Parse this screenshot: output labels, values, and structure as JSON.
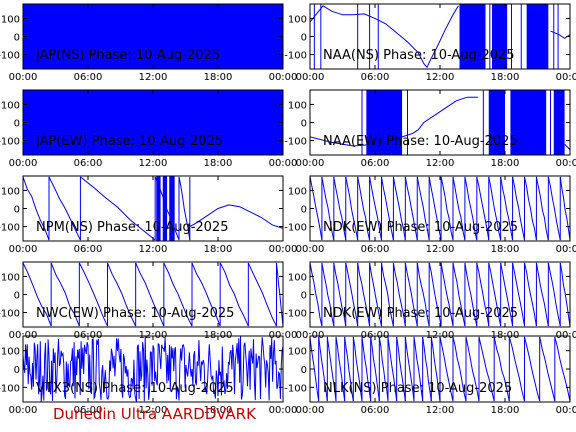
{
  "footer": "Dunedin Ultra AARDDVARK",
  "colors": {
    "trace": "#0000ff",
    "frame": "#000000",
    "footer": "#cc0000"
  },
  "chart_data": [
    {
      "type": "line",
      "title": "JAP(NS) Phase: 10-Aug-2025",
      "xticks": [
        "00:00",
        "06:00",
        "12:00",
        "18:00",
        "00:00"
      ],
      "yticks": [
        100,
        0,
        -100
      ],
      "xlim": [
        0,
        24
      ],
      "ylim": [
        -180,
        180
      ],
      "x_tick_labels_shown": true,
      "pattern": "solid",
      "segments": [
        {
          "start": 0,
          "end": 24
        }
      ]
    },
    {
      "type": "line",
      "title": "NAA(NS) Phase: 10-Aug-2025",
      "xticks": [
        "00:00",
        "06:00",
        "12:00",
        "18:00",
        "00:00"
      ],
      "yticks": [
        100,
        0,
        -100
      ],
      "xlim": [
        0,
        24
      ],
      "ylim": [
        -180,
        180
      ],
      "x_tick_labels_shown": true,
      "pattern": "mixed",
      "points": [
        [
          0,
          80
        ],
        [
          1.2,
          170
        ],
        [
          2,
          140
        ],
        [
          3,
          120
        ],
        [
          4,
          120
        ],
        [
          5,
          125
        ],
        [
          6,
          100
        ],
        [
          7,
          70
        ],
        [
          8,
          20
        ],
        [
          9,
          -30
        ],
        [
          10,
          -90
        ],
        [
          10.5,
          -150
        ],
        [
          10.8,
          -170
        ],
        [
          11.2,
          -120
        ],
        [
          11.8,
          -50
        ],
        [
          12.5,
          40
        ],
        [
          13.2,
          120
        ],
        [
          13.7,
          170
        ]
      ],
      "segments": [
        {
          "start": 13.8,
          "end": 16.2
        },
        {
          "start": 16.8,
          "end": 18.2
        },
        {
          "start": 20,
          "end": 22
        }
      ],
      "resets": [
        0.4,
        1,
        4.4,
        5.5,
        6.3,
        16.6,
        18.6,
        19.5,
        22.5,
        22.9
      ],
      "tail": [
        [
          22.2,
          30
        ],
        [
          23,
          10
        ],
        [
          23.5,
          -10
        ],
        [
          24,
          10
        ]
      ]
    },
    {
      "type": "line",
      "title": "JAP(EW) Phase: 10-Aug-2025",
      "xticks": [
        "00:00",
        "06:00",
        "12:00",
        "18:00",
        "00:00"
      ],
      "yticks": [
        100,
        0,
        -100
      ],
      "xlim": [
        0,
        24
      ],
      "ylim": [
        -180,
        180
      ],
      "x_tick_labels_shown": false,
      "pattern": "solid",
      "segments": [
        {
          "start": 0,
          "end": 24
        }
      ]
    },
    {
      "type": "line",
      "title": "NAA(EW) Phase: 10-Aug-2025",
      "xticks": [
        "00:00",
        "06:00",
        "12:00",
        "18:00",
        "00:00"
      ],
      "yticks": [
        100,
        0,
        -100
      ],
      "xlim": [
        0,
        24
      ],
      "ylim": [
        -180,
        180
      ],
      "x_tick_labels_shown": false,
      "pattern": "mixed",
      "points": [
        [
          0,
          -80
        ],
        [
          2,
          -110
        ],
        [
          4,
          -130
        ],
        [
          6,
          -120
        ],
        [
          7.5,
          -100
        ],
        [
          8.5,
          -80
        ],
        [
          9.5,
          -60
        ],
        [
          10,
          -40
        ],
        [
          10.5,
          0
        ],
        [
          11.5,
          40
        ],
        [
          12.5,
          80
        ],
        [
          13.5,
          120
        ],
        [
          14.5,
          140
        ],
        [
          15.5,
          140
        ]
      ],
      "segments": [
        {
          "start": 5.2,
          "end": 8.5
        },
        {
          "start": 16.5,
          "end": 18
        },
        {
          "start": 18.5,
          "end": 21.8
        },
        {
          "start": 22.5,
          "end": 23.5
        }
      ],
      "resets": [
        4.8,
        9,
        16,
        22.2
      ],
      "tail": [
        [
          23.5,
          -120
        ],
        [
          24,
          -150
        ]
      ]
    },
    {
      "type": "line",
      "title": "NPM(NS) Phase: 10-Aug-2025",
      "xticks": [
        "00:00",
        "06:00",
        "12:00",
        "18:00",
        "00:00"
      ],
      "yticks": [
        100,
        0,
        -100
      ],
      "xlim": [
        0,
        24
      ],
      "ylim": [
        -180,
        180
      ],
      "x_tick_labels_shown": false,
      "pattern": "ramps",
      "ramps": [
        [
          0,
          2.4
        ],
        [
          2.4,
          5.3
        ],
        [
          5.3,
          12.2
        ],
        [
          12.2,
          14.4
        ],
        [
          14.4,
          15.4
        ]
      ],
      "segments": [
        {
          "start": 12.3,
          "end": 12.7
        },
        {
          "start": 12.9,
          "end": 13.3
        },
        {
          "start": 13.5,
          "end": 14
        }
      ],
      "tail": [
        [
          15.4,
          -100
        ],
        [
          16,
          -80
        ],
        [
          17,
          -40
        ],
        [
          18,
          0
        ],
        [
          19,
          20
        ],
        [
          20,
          10
        ],
        [
          21,
          -20
        ],
        [
          22,
          -50
        ],
        [
          23,
          -90
        ],
        [
          24,
          -110
        ]
      ]
    },
    {
      "type": "line",
      "title": "NDK(EW) Phase: 10-Aug-2025",
      "xticks": [
        "00:00",
        "06:00",
        "12:00",
        "18:00",
        "00:00"
      ],
      "yticks": [
        100,
        0,
        -100
      ],
      "xlim": [
        0,
        24
      ],
      "ylim": [
        -180,
        180
      ],
      "x_tick_labels_shown": false,
      "pattern": "ramps",
      "ramps": [
        [
          0,
          1.1
        ],
        [
          1.1,
          2.2
        ],
        [
          2.2,
          3.3
        ],
        [
          3.3,
          4.4
        ],
        [
          4.4,
          5.5
        ],
        [
          5.5,
          6.6
        ],
        [
          6.6,
          7.7
        ],
        [
          7.7,
          8.8
        ],
        [
          8.8,
          9.9
        ],
        [
          9.9,
          11
        ],
        [
          11,
          12.1
        ],
        [
          12.1,
          13.2
        ],
        [
          13.2,
          14.3
        ],
        [
          14.3,
          15.4
        ],
        [
          15.4,
          16.5
        ],
        [
          16.5,
          17.6
        ],
        [
          17.6,
          18.7
        ],
        [
          18.7,
          19.8
        ],
        [
          19.8,
          20.9
        ],
        [
          20.9,
          22
        ],
        [
          22,
          23.1
        ],
        [
          23.1,
          24
        ]
      ]
    },
    {
      "type": "line",
      "title": "NWC(EW) Phase: 10-Aug-2025",
      "xticks": [
        "00:00",
        "06:00",
        "12:00",
        "18:00",
        "00:00"
      ],
      "yticks": [
        100,
        0,
        -100
      ],
      "xlim": [
        0,
        24
      ],
      "ylim": [
        -180,
        180
      ],
      "x_tick_labels_shown": false,
      "pattern": "ramps",
      "ramps": [
        [
          0,
          2.6
        ],
        [
          2.6,
          5.2
        ],
        [
          5.2,
          7.8
        ],
        [
          7.8,
          10.4
        ],
        [
          10.4,
          13
        ],
        [
          13,
          15.6
        ],
        [
          15.6,
          18.2
        ],
        [
          18.2,
          20.8
        ],
        [
          20.8,
          23.4
        ],
        [
          23.4,
          24
        ]
      ]
    },
    {
      "type": "line",
      "title": "NDK(EW) Phase: 10-Aug-2025",
      "xticks": [
        "00:00",
        "06:00",
        "12:00",
        "18:00",
        "00:00"
      ],
      "yticks": [
        100,
        0,
        -100
      ],
      "xlim": [
        0,
        24
      ],
      "ylim": [
        -180,
        180
      ],
      "x_tick_labels_shown": false,
      "pattern": "ramps",
      "ramps": [
        [
          0,
          1.1
        ],
        [
          1.1,
          2.2
        ],
        [
          2.2,
          3.3
        ],
        [
          3.3,
          4.4
        ],
        [
          4.4,
          5.5
        ],
        [
          5.5,
          6.6
        ],
        [
          6.6,
          7.7
        ],
        [
          7.7,
          8.8
        ],
        [
          8.8,
          9.9
        ],
        [
          9.9,
          11
        ],
        [
          11,
          12.1
        ],
        [
          12.1,
          13.2
        ],
        [
          13.2,
          14.3
        ],
        [
          14.3,
          15.4
        ],
        [
          15.4,
          16.5
        ],
        [
          16.5,
          17.6
        ],
        [
          17.6,
          18.7
        ],
        [
          18.7,
          19.8
        ],
        [
          19.8,
          20.9
        ],
        [
          20.9,
          22
        ],
        [
          22,
          23.1
        ],
        [
          23.1,
          24
        ]
      ]
    },
    {
      "type": "line",
      "title": "VTX3(NS) Phase: 10-Aug-2025",
      "xticks": [
        "00:00",
        "06:00",
        "12:00",
        "18:00",
        "00:00"
      ],
      "yticks": [
        100,
        0,
        -100
      ],
      "xlim": [
        0,
        24
      ],
      "ylim": [
        -180,
        180
      ],
      "x_tick_labels_shown": true,
      "pattern": "noise",
      "noise_step_hours": 0.08
    },
    {
      "type": "line",
      "title": "NLK(NS) Phase: 10-Aug-2025",
      "xticks": [
        "00:00",
        "06:00",
        "12:00",
        "18:00",
        "00:00"
      ],
      "yticks": [
        100,
        0,
        -100
      ],
      "xlim": [
        0,
        24
      ],
      "ylim": [
        -180,
        180
      ],
      "x_tick_labels_shown": true,
      "pattern": "ramps",
      "ramps": [
        [
          0,
          0.8
        ],
        [
          0.8,
          1.6
        ],
        [
          1.6,
          2.4
        ],
        [
          2.4,
          3.2
        ],
        [
          3.2,
          4
        ],
        [
          4,
          4.8
        ],
        [
          4.8,
          5.6
        ],
        [
          5.6,
          6.4
        ],
        [
          6.4,
          7.2
        ],
        [
          7.2,
          8
        ],
        [
          8,
          8.8
        ],
        [
          8.8,
          9.6
        ],
        [
          9.6,
          10.4
        ],
        [
          10.4,
          11.2
        ],
        [
          11.2,
          12
        ],
        [
          12,
          13.2
        ],
        [
          13.2,
          14.4
        ],
        [
          14.4,
          15.6
        ],
        [
          15.6,
          17
        ],
        [
          17,
          18.4
        ],
        [
          18.4,
          19.8
        ],
        [
          19.8,
          21.2
        ],
        [
          21.2,
          22.6
        ],
        [
          22.6,
          24
        ]
      ]
    }
  ]
}
